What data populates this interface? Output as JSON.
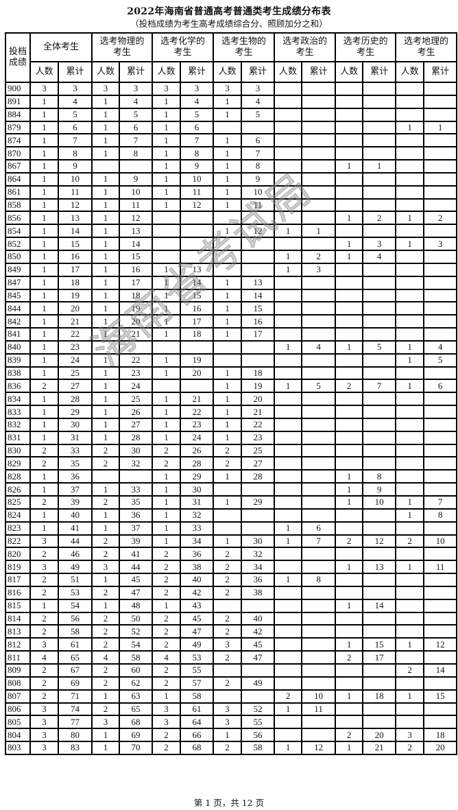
{
  "title": "2022年海南省普通高考普通类考生成绩分布表",
  "subtitle": "（投档成绩为考生高考成绩综合分、照顾加分之和）",
  "watermark": "海南省考试局",
  "footer": "第 1 页，共 12 页",
  "header": {
    "score": "投档成绩",
    "groups": [
      "全体考生",
      "选考物理的考生",
      "选考化学的考生",
      "选考生物的考生",
      "选考政治的考生",
      "选考历史的考生",
      "选考地理的考生"
    ],
    "count": "人数",
    "cumulative": "累计"
  },
  "rows": [
    [
      "900",
      "3",
      "3",
      "3",
      "3",
      "3",
      "3",
      "3",
      "3",
      "",
      "",
      "",
      "",
      "",
      ""
    ],
    [
      "891",
      "1",
      "4",
      "1",
      "4",
      "1",
      "4",
      "1",
      "4",
      "",
      "",
      "",
      "",
      "",
      ""
    ],
    [
      "884",
      "1",
      "5",
      "1",
      "5",
      "1",
      "5",
      "1",
      "5",
      "",
      "",
      "",
      "",
      "",
      ""
    ],
    [
      "879",
      "1",
      "6",
      "1",
      "6",
      "1",
      "6",
      "",
      "",
      "",
      "",
      "",
      "",
      "1",
      "1"
    ],
    [
      "874",
      "1",
      "7",
      "1",
      "7",
      "1",
      "7",
      "1",
      "6",
      "",
      "",
      "",
      "",
      "",
      ""
    ],
    [
      "870",
      "1",
      "8",
      "1",
      "8",
      "1",
      "8",
      "1",
      "7",
      "",
      "",
      "",
      "",
      "",
      ""
    ],
    [
      "867",
      "1",
      "9",
      "",
      "",
      "1",
      "9",
      "1",
      "8",
      "",
      "",
      "1",
      "1",
      "",
      ""
    ],
    [
      "864",
      "1",
      "10",
      "1",
      "9",
      "1",
      "10",
      "1",
      "9",
      "",
      "",
      "",
      "",
      "",
      ""
    ],
    [
      "861",
      "1",
      "11",
      "1",
      "10",
      "1",
      "11",
      "1",
      "10",
      "",
      "",
      "",
      "",
      "",
      ""
    ],
    [
      "858",
      "1",
      "12",
      "1",
      "11",
      "1",
      "12",
      "1",
      "11",
      "",
      "",
      "",
      "",
      "",
      ""
    ],
    [
      "856",
      "1",
      "13",
      "1",
      "12",
      "",
      "",
      "",
      "",
      "",
      "",
      "1",
      "2",
      "1",
      "2"
    ],
    [
      "854",
      "1",
      "14",
      "1",
      "13",
      "",
      "",
      "1",
      "12",
      "1",
      "1",
      "",
      "",
      "",
      ""
    ],
    [
      "852",
      "1",
      "15",
      "1",
      "14",
      "",
      "",
      "",
      "",
      "",
      "",
      "1",
      "3",
      "1",
      "3"
    ],
    [
      "850",
      "1",
      "16",
      "1",
      "15",
      "",
      "",
      "",
      "",
      "1",
      "2",
      "1",
      "4",
      "",
      ""
    ],
    [
      "849",
      "1",
      "17",
      "1",
      "16",
      "1",
      "13",
      "",
      "",
      "1",
      "3",
      "",
      "",
      "",
      ""
    ],
    [
      "847",
      "1",
      "18",
      "1",
      "17",
      "1",
      "14",
      "1",
      "13",
      "",
      "",
      "",
      "",
      "",
      ""
    ],
    [
      "845",
      "1",
      "19",
      "1",
      "18",
      "1",
      "15",
      "1",
      "14",
      "",
      "",
      "",
      "",
      "",
      ""
    ],
    [
      "844",
      "1",
      "20",
      "1",
      "19",
      "1",
      "16",
      "1",
      "15",
      "",
      "",
      "",
      "",
      "",
      ""
    ],
    [
      "842",
      "1",
      "21",
      "1",
      "20",
      "1",
      "17",
      "1",
      "16",
      "",
      "",
      "",
      "",
      "",
      ""
    ],
    [
      "841",
      "1",
      "22",
      "1",
      "21",
      "1",
      "18",
      "1",
      "17",
      "",
      "",
      "",
      "",
      "",
      ""
    ],
    [
      "840",
      "1",
      "23",
      "",
      "",
      "",
      "",
      "",
      "",
      "1",
      "4",
      "1",
      "5",
      "1",
      "4"
    ],
    [
      "839",
      "1",
      "24",
      "1",
      "22",
      "1",
      "19",
      "",
      "",
      "",
      "",
      "",
      "",
      "1",
      "5"
    ],
    [
      "838",
      "1",
      "25",
      "1",
      "23",
      "1",
      "20",
      "1",
      "18",
      "",
      "",
      "",
      "",
      "",
      ""
    ],
    [
      "836",
      "2",
      "27",
      "1",
      "24",
      "",
      "",
      "1",
      "19",
      "1",
      "5",
      "2",
      "7",
      "1",
      "6"
    ],
    [
      "834",
      "1",
      "28",
      "1",
      "25",
      "1",
      "21",
      "1",
      "20",
      "",
      "",
      "",
      "",
      "",
      ""
    ],
    [
      "833",
      "1",
      "29",
      "1",
      "26",
      "1",
      "22",
      "1",
      "21",
      "",
      "",
      "",
      "",
      "",
      ""
    ],
    [
      "832",
      "1",
      "30",
      "1",
      "27",
      "1",
      "23",
      "1",
      "22",
      "",
      "",
      "",
      "",
      "",
      ""
    ],
    [
      "831",
      "1",
      "31",
      "1",
      "28",
      "1",
      "24",
      "1",
      "23",
      "",
      "",
      "",
      "",
      "",
      ""
    ],
    [
      "830",
      "2",
      "33",
      "2",
      "30",
      "2",
      "26",
      "2",
      "25",
      "",
      "",
      "",
      "",
      "",
      ""
    ],
    [
      "829",
      "2",
      "35",
      "2",
      "32",
      "2",
      "28",
      "2",
      "27",
      "",
      "",
      "",
      "",
      "",
      ""
    ],
    [
      "828",
      "1",
      "36",
      "",
      "",
      "1",
      "29",
      "1",
      "28",
      "",
      "",
      "1",
      "8",
      "",
      ""
    ],
    [
      "826",
      "1",
      "37",
      "1",
      "33",
      "1",
      "30",
      "",
      "",
      "",
      "",
      "1",
      "9",
      "",
      ""
    ],
    [
      "825",
      "2",
      "39",
      "2",
      "35",
      "1",
      "31",
      "1",
      "29",
      "",
      "",
      "1",
      "10",
      "1",
      "7"
    ],
    [
      "824",
      "1",
      "40",
      "1",
      "36",
      "1",
      "32",
      "",
      "",
      "",
      "",
      "",
      "",
      "1",
      "8"
    ],
    [
      "823",
      "1",
      "41",
      "1",
      "37",
      "1",
      "33",
      "",
      "",
      "1",
      "6",
      "",
      "",
      "",
      ""
    ],
    [
      "822",
      "3",
      "44",
      "2",
      "39",
      "1",
      "34",
      "1",
      "30",
      "1",
      "7",
      "2",
      "12",
      "2",
      "10"
    ],
    [
      "820",
      "2",
      "46",
      "2",
      "41",
      "2",
      "36",
      "2",
      "32",
      "",
      "",
      "",
      "",
      "",
      ""
    ],
    [
      "819",
      "3",
      "49",
      "3",
      "44",
      "2",
      "38",
      "2",
      "34",
      "",
      "",
      "1",
      "13",
      "1",
      "11"
    ],
    [
      "817",
      "2",
      "51",
      "1",
      "45",
      "2",
      "40",
      "2",
      "36",
      "1",
      "8",
      "",
      "",
      "",
      ""
    ],
    [
      "816",
      "2",
      "53",
      "2",
      "47",
      "2",
      "42",
      "2",
      "38",
      "",
      "",
      "",
      "",
      "",
      ""
    ],
    [
      "815",
      "1",
      "54",
      "1",
      "48",
      "1",
      "43",
      "",
      "",
      "",
      "",
      "1",
      "14",
      "",
      ""
    ],
    [
      "814",
      "2",
      "56",
      "2",
      "50",
      "2",
      "45",
      "2",
      "40",
      "",
      "",
      "",
      "",
      "",
      ""
    ],
    [
      "813",
      "2",
      "58",
      "2",
      "52",
      "2",
      "47",
      "2",
      "42",
      "",
      "",
      "",
      "",
      "",
      ""
    ],
    [
      "812",
      "3",
      "61",
      "2",
      "54",
      "2",
      "49",
      "3",
      "45",
      "",
      "",
      "1",
      "15",
      "1",
      "12"
    ],
    [
      "811",
      "4",
      "65",
      "4",
      "58",
      "4",
      "53",
      "2",
      "47",
      "",
      "",
      "2",
      "17",
      "",
      ""
    ],
    [
      "809",
      "2",
      "67",
      "2",
      "60",
      "2",
      "55",
      "",
      "",
      "",
      "",
      "",
      "",
      "2",
      "14"
    ],
    [
      "808",
      "2",
      "69",
      "2",
      "62",
      "2",
      "57",
      "2",
      "49",
      "",
      "",
      "",
      "",
      "",
      ""
    ],
    [
      "807",
      "2",
      "71",
      "1",
      "63",
      "1",
      "58",
      "",
      "",
      "2",
      "10",
      "1",
      "18",
      "1",
      "15"
    ],
    [
      "806",
      "3",
      "74",
      "2",
      "65",
      "3",
      "61",
      "3",
      "52",
      "1",
      "11",
      "",
      "",
      "",
      ""
    ],
    [
      "805",
      "3",
      "77",
      "3",
      "68",
      "3",
      "64",
      "3",
      "55",
      "",
      "",
      "",
      "",
      "",
      ""
    ],
    [
      "804",
      "3",
      "80",
      "1",
      "69",
      "2",
      "66",
      "1",
      "56",
      "",
      "",
      "2",
      "20",
      "3",
      "18"
    ],
    [
      "803",
      "3",
      "83",
      "1",
      "70",
      "2",
      "68",
      "2",
      "58",
      "1",
      "12",
      "1",
      "21",
      "2",
      "20"
    ]
  ]
}
